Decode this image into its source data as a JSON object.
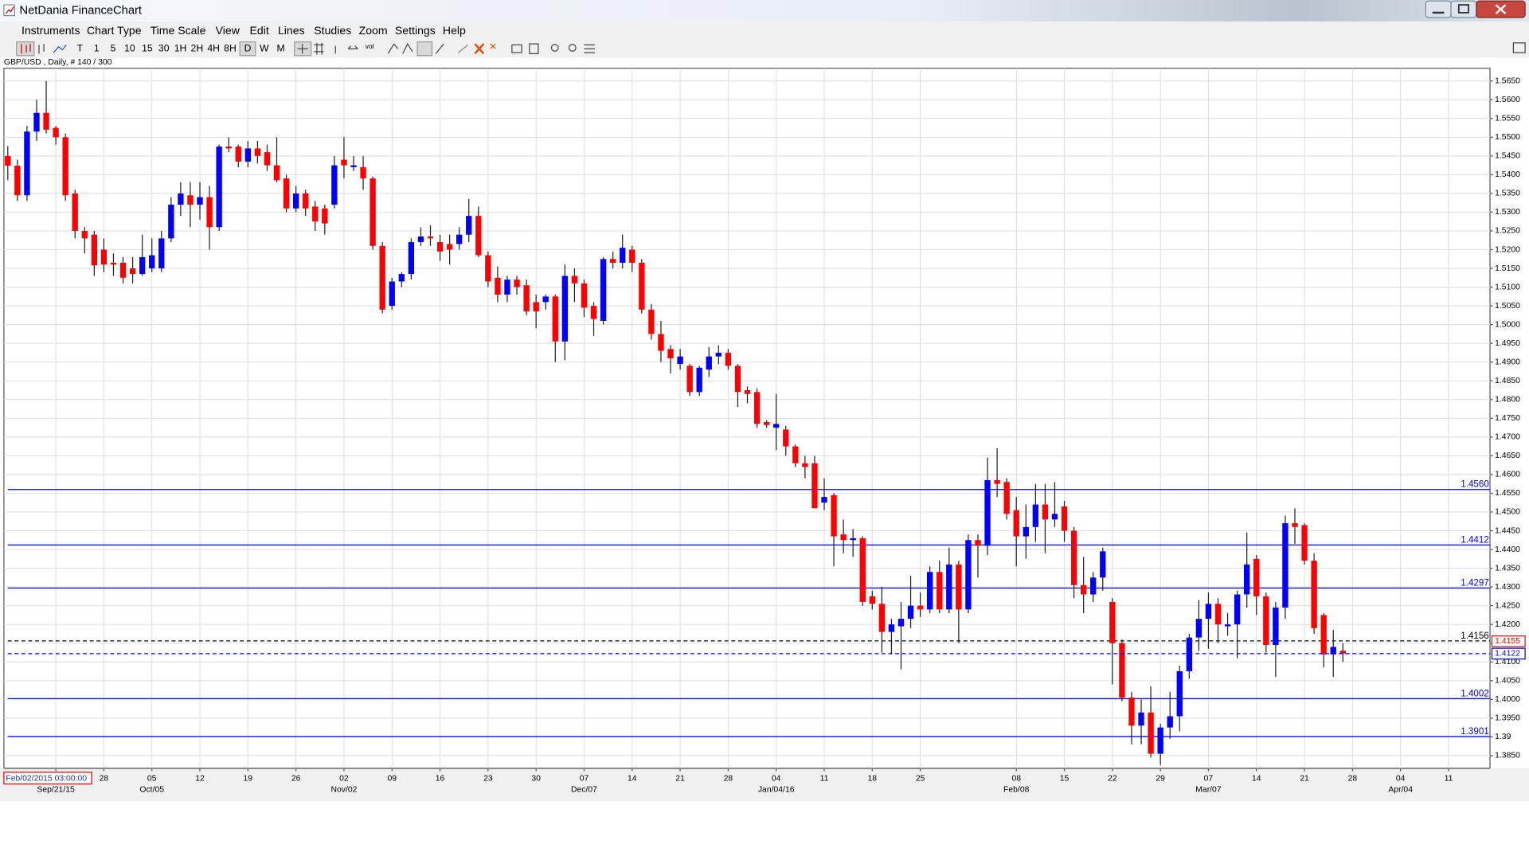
{
  "window": {
    "title": "NetDania FinanceChart",
    "menu": [
      "Instruments",
      "Chart Type",
      "Time Scale",
      "View",
      "Edit",
      "Lines",
      "Studies",
      "Zoom",
      "Settings",
      "Help"
    ],
    "toolbar_buttons": [
      "T",
      "1",
      "5",
      "10",
      "15",
      "30",
      "1H",
      "2H",
      "4H",
      "8H",
      "D",
      "W",
      "M"
    ],
    "toolbar_vol": "vol"
  },
  "chart_data": {
    "type": "candlestick",
    "subtitle": "GBP/USD , Daily, # 140 / 300",
    "cursor_time": "Feb/02/2015 03:00:00",
    "up_color": "#0000ff",
    "down_color": "#ff0000",
    "wick_color": "#202020",
    "grid": true,
    "ylim": [
      1.3816,
      1.5684
    ],
    "yticks": [
      {
        "value": 1.385,
        "label": "1.3850"
      },
      1.39,
      {
        "value": 1.395,
        "label": "1.3950"
      },
      {
        "value": 1.4,
        "label": "1.4000"
      },
      {
        "value": 1.405,
        "label": "1.4050"
      },
      {
        "value": 1.41,
        "label": "1.4100"
      },
      {
        "value": 1.415,
        "label": "1.4150"
      },
      {
        "value": 1.42,
        "label": "1.4200"
      },
      {
        "value": 1.425,
        "label": "1.4250"
      },
      {
        "value": 1.43,
        "label": "1.4300"
      },
      {
        "value": 1.435,
        "label": "1.4350"
      },
      {
        "value": 1.44,
        "label": "1.4400"
      },
      {
        "value": 1.445,
        "label": "1.4450"
      },
      {
        "value": 1.45,
        "label": "1.4500"
      },
      {
        "value": 1.455,
        "label": "1.4550"
      },
      {
        "value": 1.46,
        "label": "1.4600"
      },
      {
        "value": 1.465,
        "label": "1.4650"
      },
      {
        "value": 1.47,
        "label": "1.4700"
      },
      {
        "value": 1.475,
        "label": "1.4750"
      },
      {
        "value": 1.48,
        "label": "1.4800"
      },
      {
        "value": 1.485,
        "label": "1.4850"
      },
      {
        "value": 1.49,
        "label": "1.4900"
      },
      {
        "value": 1.495,
        "label": "1.4950"
      },
      {
        "value": 1.5,
        "label": "1.5000"
      },
      {
        "value": 1.505,
        "label": "1.5050"
      },
      {
        "value": 1.51,
        "label": "1.5100"
      },
      {
        "value": 1.515,
        "label": "1.5150"
      },
      {
        "value": 1.52,
        "label": "1.5200"
      },
      {
        "value": 1.525,
        "label": "1.5250"
      },
      {
        "value": 1.53,
        "label": "1.5300"
      },
      {
        "value": 1.535,
        "label": "1.5350"
      },
      {
        "value": 1.54,
        "label": "1.5400"
      },
      {
        "value": 1.545,
        "label": "1.5450"
      },
      {
        "value": 1.55,
        "label": "1.5500"
      },
      {
        "value": 1.555,
        "label": "1.5550"
      },
      {
        "value": 1.56,
        "label": "1.5600"
      },
      {
        "value": 1.565,
        "label": "1.5650"
      }
    ],
    "levels": [
      {
        "value": 1.456,
        "label": "1.4560",
        "color": "#0000ff",
        "dashed": false
      },
      {
        "value": 1.4412,
        "color": "#0000ff",
        "dashed": false
      },
      {
        "value": 1.4297,
        "color": "#0000ff",
        "dashed": false
      },
      {
        "value": 1.4156,
        "color": "#000000",
        "dashed": true
      },
      {
        "value": 1.4002,
        "color": "#0000ff",
        "dashed": false
      },
      {
        "value": 1.3901,
        "color": "#0000ff",
        "dashed": false
      }
    ],
    "price_markers": [
      {
        "value": 1.4155,
        "color": "#ff0000",
        "dashed": false
      },
      {
        "value": 1.4122,
        "color": "#0000ff",
        "dashed": true
      }
    ],
    "categories": [
      null,
      null,
      null,
      null,
      null,
      {
        "month": "Sep/21/15"
      },
      null,
      null,
      null,
      null,
      {
        "day": "28"
      },
      null,
      null,
      null,
      null,
      {
        "day": "05",
        "month": "Oct/05"
      },
      null,
      null,
      null,
      null,
      {
        "day": "12"
      },
      null,
      null,
      null,
      null,
      {
        "day": "19"
      },
      null,
      null,
      null,
      null,
      {
        "day": "26"
      },
      null,
      null,
      null,
      null,
      {
        "day": "02",
        "month": "Nov/02"
      },
      null,
      null,
      null,
      null,
      {
        "day": "09"
      },
      null,
      null,
      null,
      null,
      {
        "day": "16"
      },
      null,
      null,
      null,
      null,
      {
        "day": "23"
      },
      null,
      null,
      null,
      null,
      {
        "day": "30"
      },
      null,
      null,
      null,
      null,
      {
        "day": "07",
        "month": "Dec/07"
      },
      null,
      null,
      null,
      null,
      {
        "day": "14"
      },
      null,
      null,
      null,
      null,
      {
        "day": "21"
      },
      null,
      null,
      null,
      null,
      {
        "day": "28"
      },
      null,
      null,
      null,
      null,
      {
        "day": "04",
        "month": "Jan/04/16"
      },
      null,
      null,
      null,
      null,
      {
        "day": "11"
      },
      null,
      null,
      null,
      null,
      {
        "day": "18"
      },
      null,
      null,
      null,
      null,
      {
        "day": "25"
      },
      null,
      null,
      null,
      null,
      null,
      null,
      null,
      null,
      null,
      {
        "day": "08",
        "month": "Feb/08"
      },
      null,
      null,
      null,
      null,
      {
        "day": "15"
      },
      null,
      null,
      null,
      null,
      {
        "day": "22"
      },
      null,
      null,
      null,
      null,
      {
        "day": "29"
      },
      null,
      null,
      null,
      null,
      {
        "day": "07",
        "month": "Mar/07"
      },
      null,
      null,
      null,
      null,
      {
        "day": "14"
      },
      null,
      null,
      null,
      null,
      {
        "day": "21"
      },
      null,
      null,
      null,
      null,
      {
        "day": "28"
      },
      null,
      null,
      null,
      null,
      {
        "day": "04",
        "month": "Apr/04"
      },
      null,
      null,
      null,
      null,
      {
        "day": "11"
      },
      null,
      null,
      null,
      null
    ],
    "candles": [
      [
        1.545,
        1.5476,
        1.5385,
        1.5424
      ],
      [
        1.5424,
        1.544,
        1.533,
        1.5345
      ],
      [
        1.5345,
        1.553,
        1.533,
        1.5515
      ],
      [
        1.5515,
        1.56,
        1.549,
        1.5565
      ],
      [
        1.5565,
        1.565,
        1.551,
        1.552
      ],
      [
        1.5525,
        1.553,
        1.548,
        1.55
      ],
      [
        1.55,
        1.551,
        1.533,
        1.5345
      ],
      [
        1.535,
        1.536,
        1.523,
        1.525
      ],
      [
        1.525,
        1.526,
        1.519,
        1.523
      ],
      [
        1.524,
        1.525,
        1.513,
        1.5158
      ],
      [
        1.52,
        1.523,
        1.514,
        1.516
      ],
      [
        1.5165,
        1.519,
        1.513,
        1.516
      ],
      [
        1.5165,
        1.518,
        1.511,
        1.5125
      ],
      [
        1.515,
        1.518,
        1.511,
        1.5135
      ],
      [
        1.5135,
        1.524,
        1.513,
        1.518
      ],
      [
        1.515,
        1.523,
        1.514,
        1.5185
      ],
      [
        1.515,
        1.525,
        1.514,
        1.523
      ],
      [
        1.523,
        1.534,
        1.522,
        1.532
      ],
      [
        1.532,
        1.538,
        1.529,
        1.535
      ],
      [
        1.5345,
        1.538,
        1.526,
        1.532
      ],
      [
        1.532,
        1.538,
        1.528,
        1.534
      ],
      [
        1.534,
        1.537,
        1.52,
        1.526
      ],
      [
        1.526,
        1.548,
        1.525,
        1.5475
      ],
      [
        1.5475,
        1.55,
        1.546,
        1.547
      ],
      [
        1.5475,
        1.548,
        1.542,
        1.5435
      ],
      [
        1.5435,
        1.549,
        1.542,
        1.547
      ],
      [
        1.547,
        1.549,
        1.543,
        1.545
      ],
      [
        1.546,
        1.548,
        1.541,
        1.5425
      ],
      [
        1.5425,
        1.55,
        1.538,
        1.5385
      ],
      [
        1.539,
        1.54,
        1.53,
        1.531
      ],
      [
        1.531,
        1.537,
        1.53,
        1.535
      ],
      [
        1.535,
        1.536,
        1.529,
        1.531
      ],
      [
        1.5315,
        1.533,
        1.525,
        1.5275
      ],
      [
        1.531,
        1.532,
        1.524,
        1.527
      ],
      [
        1.532,
        1.545,
        1.531,
        1.5425
      ],
      [
        1.544,
        1.55,
        1.539,
        1.5425
      ],
      [
        1.542,
        1.545,
        1.541,
        1.5425
      ],
      [
        1.542,
        1.545,
        1.536,
        1.539
      ],
      [
        1.539,
        1.5395,
        1.52,
        1.521
      ],
      [
        1.521,
        1.522,
        1.503,
        1.504
      ],
      [
        1.505,
        1.5125,
        1.504,
        1.5115
      ],
      [
        1.5115,
        1.514,
        1.51,
        1.5135
      ],
      [
        1.5135,
        1.523,
        1.512,
        1.522
      ],
      [
        1.522,
        1.526,
        1.521,
        1.5235
      ],
      [
        1.5235,
        1.5265,
        1.521,
        1.523
      ],
      [
        1.522,
        1.524,
        1.517,
        1.5195
      ],
      [
        1.5215,
        1.524,
        1.516,
        1.52
      ],
      [
        1.5215,
        1.526,
        1.52,
        1.524
      ],
      [
        1.524,
        1.5335,
        1.522,
        1.529
      ],
      [
        1.529,
        1.5315,
        1.518,
        1.5185
      ],
      [
        1.5185,
        1.5195,
        1.51,
        1.5115
      ],
      [
        1.5125,
        1.5155,
        1.506,
        1.508
      ],
      [
        1.508,
        1.513,
        1.506,
        1.512
      ],
      [
        1.512,
        1.513,
        1.508,
        1.51
      ],
      [
        1.5105,
        1.512,
        1.5025,
        1.5035
      ],
      [
        1.506,
        1.508,
        1.499,
        1.5035
      ],
      [
        1.506,
        1.508,
        1.504,
        1.5075
      ],
      [
        1.5075,
        1.508,
        1.49,
        1.4955
      ],
      [
        1.4955,
        1.516,
        1.4905,
        1.513
      ],
      [
        1.513,
        1.515,
        1.506,
        1.511
      ],
      [
        1.511,
        1.512,
        1.502,
        1.5045
      ],
      [
        1.505,
        1.506,
        1.497,
        1.5015
      ],
      [
        1.501,
        1.518,
        1.5,
        1.5175
      ],
      [
        1.5175,
        1.5195,
        1.515,
        1.5165
      ],
      [
        1.5165,
        1.524,
        1.515,
        1.5205
      ],
      [
        1.52,
        1.521,
        1.514,
        1.5165
      ],
      [
        1.5165,
        1.5175,
        1.503,
        1.504
      ],
      [
        1.504,
        1.5055,
        1.496,
        1.4975
      ],
      [
        1.4975,
        1.501,
        1.49,
        1.493
      ],
      [
        1.4935,
        1.4945,
        1.487,
        1.491
      ],
      [
        1.4895,
        1.4935,
        1.488,
        1.4915
      ],
      [
        1.489,
        1.4895,
        1.481,
        1.482
      ],
      [
        1.482,
        1.489,
        1.481,
        1.4885
      ],
      [
        1.488,
        1.494,
        1.486,
        1.4915
      ],
      [
        1.4915,
        1.4945,
        1.4895,
        1.4925
      ],
      [
        1.4925,
        1.4935,
        1.488,
        1.489
      ],
      [
        1.489,
        1.4895,
        1.478,
        1.482
      ],
      [
        1.4825,
        1.4835,
        1.479,
        1.4815
      ],
      [
        1.482,
        1.483,
        1.4725,
        1.4735
      ],
      [
        1.474,
        1.4745,
        1.4725,
        1.4732
      ],
      [
        1.4725,
        1.4815,
        1.4665,
        1.4735
      ],
      [
        1.472,
        1.473,
        1.465,
        1.4675
      ],
      [
        1.4675,
        1.468,
        1.462,
        1.463
      ],
      [
        1.463,
        1.465,
        1.459,
        1.462
      ],
      [
        1.463,
        1.465,
        1.451,
        1.451
      ],
      [
        1.4525,
        1.459,
        1.4505,
        1.454
      ],
      [
        1.4545,
        1.455,
        1.4355,
        1.4435
      ],
      [
        1.444,
        1.448,
        1.439,
        1.4425
      ],
      [
        1.4425,
        1.4455,
        1.438,
        1.443
      ],
      [
        1.443,
        1.4435,
        1.425,
        1.426
      ],
      [
        1.4275,
        1.429,
        1.424,
        1.4255
      ],
      [
        1.4255,
        1.43,
        1.4125,
        1.418
      ],
      [
        1.418,
        1.4215,
        1.412,
        1.42
      ],
      [
        1.4195,
        1.426,
        1.408,
        1.4215
      ],
      [
        1.4215,
        1.433,
        1.419,
        1.425
      ],
      [
        1.425,
        1.4285,
        1.422,
        1.424
      ],
      [
        1.424,
        1.4355,
        1.423,
        1.434
      ],
      [
        1.434,
        1.437,
        1.423,
        1.424
      ],
      [
        1.424,
        1.4405,
        1.423,
        1.436
      ],
      [
        1.436,
        1.437,
        1.415,
        1.424
      ],
      [
        1.424,
        1.444,
        1.423,
        1.4425
      ],
      [
        1.4425,
        1.444,
        1.4325,
        1.441
      ],
      [
        1.441,
        1.4645,
        1.4385,
        1.4585
      ],
      [
        1.4585,
        1.467,
        1.454,
        1.4575
      ],
      [
        1.458,
        1.459,
        1.448,
        1.4495
      ],
      [
        1.4505,
        1.454,
        1.4355,
        1.4435
      ],
      [
        1.4435,
        1.452,
        1.4375,
        1.446
      ],
      [
        1.446,
        1.4575,
        1.442,
        1.452
      ],
      [
        1.452,
        1.4575,
        1.439,
        1.448
      ],
      [
        1.448,
        1.458,
        1.446,
        1.4495
      ],
      [
        1.4515,
        1.453,
        1.442,
        1.445
      ],
      [
        1.445,
        1.446,
        1.427,
        1.4305
      ],
      [
        1.4305,
        1.438,
        1.423,
        1.428
      ],
      [
        1.428,
        1.434,
        1.426,
        1.4325
      ],
      [
        1.4325,
        1.4405,
        1.429,
        1.4395
      ],
      [
        1.426,
        1.427,
        1.404,
        1.415
      ],
      [
        1.415,
        1.416,
        1.3995,
        1.4005
      ],
      [
        1.4005,
        1.402,
        1.388,
        1.393
      ],
      [
        1.393,
        1.4,
        1.388,
        1.3965
      ],
      [
        1.3965,
        1.4035,
        1.3845,
        1.3855
      ],
      [
        1.3855,
        1.3935,
        1.3825,
        1.3925
      ],
      [
        1.3925,
        1.402,
        1.3895,
        1.3955
      ],
      [
        1.3955,
        1.409,
        1.3915,
        1.4075
      ],
      [
        1.4075,
        1.4175,
        1.4055,
        1.4165
      ],
      [
        1.4165,
        1.4265,
        1.413,
        1.4215
      ],
      [
        1.4215,
        1.4285,
        1.4135,
        1.4255
      ],
      [
        1.4255,
        1.427,
        1.415,
        1.42
      ],
      [
        1.4195,
        1.423,
        1.417,
        1.42
      ],
      [
        1.42,
        1.429,
        1.411,
        1.428
      ],
      [
        1.428,
        1.4445,
        1.4245,
        1.436
      ],
      [
        1.4375,
        1.4385,
        1.4225,
        1.4275
      ],
      [
        1.4275,
        1.4285,
        1.4125,
        1.4145
      ],
      [
        1.4145,
        1.426,
        1.406,
        1.4245
      ],
      [
        1.4245,
        1.449,
        1.4215,
        1.447
      ],
      [
        1.447,
        1.451,
        1.4415,
        1.446
      ],
      [
        1.4465,
        1.447,
        1.436,
        1.437
      ],
      [
        1.437,
        1.439,
        1.4175,
        1.419
      ],
      [
        1.4225,
        1.423,
        1.4085,
        1.412
      ],
      [
        1.412,
        1.4185,
        1.406,
        1.414
      ],
      [
        1.413,
        1.415,
        1.41,
        1.4122
      ],
      null,
      null,
      null,
      null,
      null,
      null,
      null,
      null,
      null,
      null,
      null,
      null,
      null,
      null,
      null
    ]
  }
}
